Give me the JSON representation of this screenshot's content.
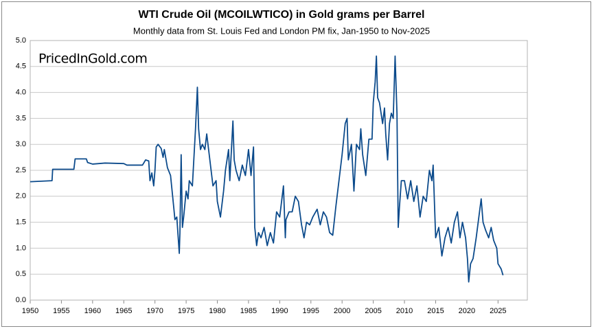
{
  "chart_data": {
    "type": "line",
    "title": "WTI Crude Oil (MCOILWTICO) in Gold grams per Barrel",
    "subtitle": "Monthly data from St. Louis Fed and London PM fix, Jan-1950 to Nov-2025",
    "watermark": "PricedInGold.com",
    "color": "#0b4a8b",
    "grid": true,
    "xlim": [
      1950,
      2029.7
    ],
    "xticks": [
      1950,
      1955,
      1960,
      1965,
      1970,
      1975,
      1980,
      1985,
      1990,
      1995,
      2000,
      2005,
      2010,
      2015,
      2020,
      2025
    ],
    "ylim": [
      0,
      5
    ],
    "yticks": [
      {
        "value": 0,
        "label": "0.0"
      },
      0.5,
      {
        "value": 1,
        "label": "1.0"
      },
      1.5,
      {
        "value": 2,
        "label": "2.0"
      },
      2.5,
      {
        "value": 3,
        "label": "3.0"
      },
      3.5,
      {
        "value": 4,
        "label": "4.0"
      },
      4.5,
      {
        "value": 5,
        "label": "5.0"
      }
    ],
    "x": [
      1950,
      1953.5,
      1953.6,
      1957,
      1957.2,
      1959,
      1959.2,
      1960,
      1962,
      1965,
      1965.5,
      1968,
      1968.5,
      1969,
      1969.2,
      1969.5,
      1969.8,
      1970,
      1970.2,
      1970.5,
      1971,
      1971.3,
      1971.5,
      1972,
      1972.5,
      1973,
      1973.2,
      1973.5,
      1973.9,
      1974,
      1974.2,
      1974.4,
      1974.6,
      1975,
      1975.3,
      1975.5,
      1976,
      1976.5,
      1976.8,
      1977,
      1977.3,
      1977.6,
      1978,
      1978.3,
      1978.8,
      1979.3,
      1979.8,
      1980,
      1980.5,
      1981,
      1981.3,
      1981.8,
      1982,
      1982.5,
      1982.7,
      1983,
      1983.5,
      1984,
      1984.5,
      1985,
      1985.4,
      1985.8,
      1986,
      1986.3,
      1986.6,
      1987,
      1987.5,
      1988,
      1988.5,
      1989,
      1989.5,
      1990,
      1990.6,
      1990.9,
      1991,
      1991.5,
      1992,
      1992.5,
      1993,
      1993.5,
      1993.9,
      1994.3,
      1994.8,
      1995.3,
      1996,
      1996.5,
      1997,
      1997.5,
      1998,
      1998.5,
      1999,
      1999.5,
      2000,
      2000.5,
      2000.8,
      2001,
      2001.5,
      2001.9,
      2002.3,
      2002.8,
      2003,
      2003.3,
      2003.8,
      2004.3,
      2004.8,
      2005,
      2005.3,
      2005.5,
      2005.7,
      2006,
      2006.5,
      2006.8,
      2007,
      2007.3,
      2007.6,
      2007.9,
      2008.2,
      2008.5,
      2008.8,
      2009,
      2009.2,
      2009.5,
      2010,
      2010.5,
      2011,
      2011.5,
      2012,
      2012.5,
      2013,
      2013.5,
      2014,
      2014.4,
      2014.6,
      2015,
      2015.5,
      2016,
      2016.5,
      2017,
      2017.5,
      2018,
      2018.5,
      2018.9,
      2019.3,
      2019.8,
      2020.1,
      2020.3,
      2020.6,
      2021,
      2021.5,
      2022.3,
      2022.6,
      2023,
      2023.5,
      2023.9,
      2024.3,
      2024.8,
      2025,
      2025.5,
      2025.8
    ],
    "values": [
      2.28,
      2.3,
      2.52,
      2.52,
      2.72,
      2.72,
      2.65,
      2.62,
      2.64,
      2.63,
      2.6,
      2.6,
      2.7,
      2.68,
      2.3,
      2.45,
      2.2,
      2.5,
      2.95,
      3.0,
      2.92,
      2.75,
      2.9,
      2.55,
      2.4,
      1.8,
      1.55,
      1.6,
      0.9,
      1.3,
      2.8,
      1.4,
      1.6,
      2.1,
      1.95,
      2.3,
      2.2,
      3.3,
      4.1,
      3.3,
      2.9,
      3.0,
      2.9,
      3.2,
      2.7,
      2.2,
      2.3,
      1.9,
      1.6,
      2.1,
      2.5,
      2.9,
      2.3,
      3.45,
      2.7,
      2.5,
      2.3,
      2.6,
      2.4,
      2.9,
      2.4,
      2.95,
      1.4,
      1.05,
      1.3,
      1.2,
      1.4,
      1.05,
      1.3,
      1.1,
      1.7,
      1.6,
      2.2,
      1.2,
      1.55,
      1.7,
      1.7,
      2.0,
      1.9,
      1.45,
      1.2,
      1.5,
      1.45,
      1.6,
      1.75,
      1.45,
      1.7,
      1.6,
      1.3,
      1.25,
      1.8,
      2.3,
      2.8,
      3.4,
      3.5,
      2.7,
      3.0,
      2.1,
      3.0,
      2.9,
      3.3,
      2.8,
      2.4,
      3.1,
      3.1,
      3.8,
      4.2,
      4.7,
      3.9,
      3.8,
      3.4,
      3.7,
      3.2,
      2.7,
      3.4,
      3.6,
      3.5,
      4.7,
      3.6,
      1.4,
      1.8,
      2.3,
      2.3,
      1.95,
      2.3,
      1.9,
      2.2,
      1.6,
      2.0,
      1.9,
      2.5,
      2.3,
      2.6,
      1.2,
      1.4,
      0.85,
      1.2,
      1.4,
      1.1,
      1.5,
      1.7,
      1.2,
      1.5,
      1.2,
      0.8,
      0.35,
      0.7,
      0.8,
      1.2,
      1.95,
      1.5,
      1.35,
      1.2,
      1.4,
      1.15,
      1.0,
      0.7,
      0.6,
      0.48
    ]
  }
}
